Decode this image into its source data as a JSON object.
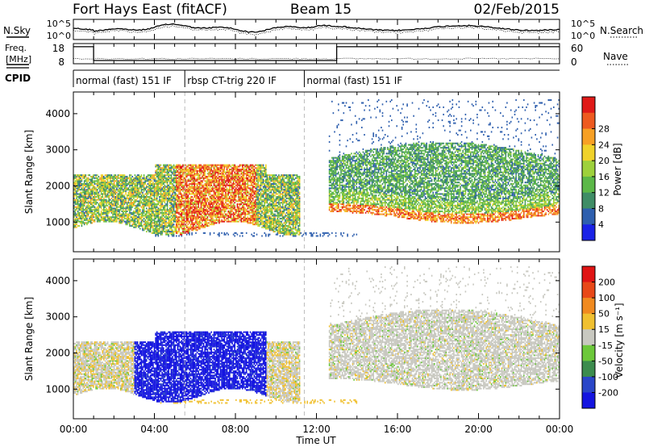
{
  "header": {
    "station": "Fort Hays East (fitACF)",
    "beam": "Beam 15",
    "date": "02/Feb/2015"
  },
  "panel_labels": {
    "nsky": "N.Sky",
    "nsearch": "N.Search",
    "freq_line1": "Freq.",
    "freq_line2": "[MHz]",
    "nave": "Nave",
    "cpid": "CPID"
  },
  "nsky_ticks": [
    "10^5",
    "10^0"
  ],
  "nsearch_ticks": [
    "10^5",
    "10^0"
  ],
  "freq_ticks": [
    "18",
    "8"
  ],
  "nave_ticks": [
    "60",
    "0"
  ],
  "cpid_segments": [
    {
      "label": "normal (fast) 151 IF",
      "start_hour": 0.0,
      "end_hour": 5.5
    },
    {
      "label": "rbsp CT-trig 220 IF",
      "start_hour": 5.5,
      "end_hour": 11.4
    },
    {
      "label": "normal (fast) 151 IF",
      "start_hour": 11.4,
      "end_hour": 24.0
    }
  ],
  "frequency_profile": {
    "hours": [
      0,
      1.0,
      1.0,
      13.0,
      13.0,
      24
    ],
    "mhz": [
      17.6,
      17.6,
      9.8,
      9.8,
      17.6,
      17.6
    ]
  },
  "chart_data": [
    {
      "type": "heatmap",
      "name": "power",
      "ylabel": "Slant Range [km]",
      "xlabel": "Time UT",
      "xlim": [
        0,
        24
      ],
      "ylim": [
        180,
        4600
      ],
      "yticks": [
        1000,
        2000,
        3000,
        4000
      ],
      "xtick_labels": [
        "00:00",
        "04:00",
        "08:00",
        "12:00",
        "16:00",
        "20:00",
        "00:00"
      ],
      "xtick_hours": [
        0,
        4,
        8,
        12,
        16,
        20,
        24
      ],
      "colorbar": {
        "label": "Power [dB]",
        "ticks": [
          4,
          8,
          12,
          16,
          20,
          24,
          28
        ],
        "colors": [
          "#1a22e6",
          "#2e5fae",
          "#3f8d66",
          "#5cb848",
          "#9ed13c",
          "#f0d22a",
          "#f7a025",
          "#ee5a20",
          "#e01a18"
        ]
      }
    },
    {
      "type": "heatmap",
      "name": "velocity",
      "ylabel": "Slant Range [km]",
      "xlabel": "Time UT",
      "xlim": [
        0,
        24
      ],
      "ylim": [
        180,
        4600
      ],
      "yticks": [
        1000,
        2000,
        3000,
        4000
      ],
      "xtick_labels": [
        "00:00",
        "04:00",
        "08:00",
        "12:00",
        "16:00",
        "20:00",
        "00:00"
      ],
      "xtick_hours": [
        0,
        4,
        8,
        12,
        16,
        20,
        24
      ],
      "colorbar": {
        "label": "Velocity [m s⁻¹]",
        "ticks": [
          "200",
          "100",
          "50",
          "15",
          "-15",
          "-50",
          "-100",
          "-200"
        ],
        "colors": [
          "#1414e0",
          "#2a46c8",
          "#3c8c4e",
          "#6cc83a",
          "#c8c8c0",
          "#f0c030",
          "#f08a20",
          "#e84818",
          "#e01414"
        ]
      }
    }
  ],
  "time_axis_label": "Time UT"
}
